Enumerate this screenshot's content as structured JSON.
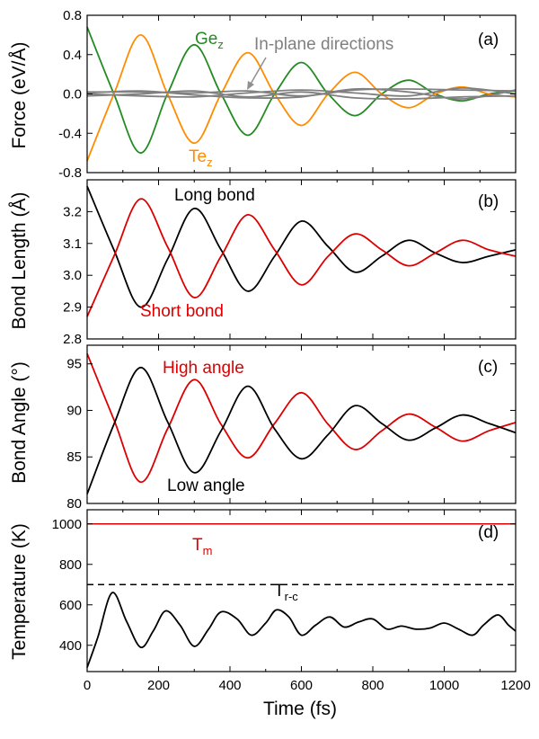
{
  "chart_data": [
    {
      "type": "line",
      "panel_label": "(a)",
      "ylabel": "Force (eV/Å)",
      "xlim": [
        0,
        1200
      ],
      "ylim": [
        -0.8,
        0.8
      ],
      "yticks": [
        "-0.8",
        "-0.4",
        "0.0",
        "0.4",
        "0.8"
      ],
      "annotations": {
        "in_plane": "In-plane directions",
        "ge": {
          "main": "Ge",
          "sub": "z"
        },
        "te": {
          "main": "Te",
          "sub": "z"
        }
      },
      "series": [
        {
          "name": "Gez",
          "color": "#228B22",
          "x": [
            0,
            75,
            150,
            225,
            300,
            375,
            450,
            525,
            600,
            675,
            750,
            825,
            900,
            975,
            1050,
            1125,
            1200
          ],
          "y": [
            0.68,
            0.0,
            -0.6,
            0.0,
            0.5,
            0.0,
            -0.42,
            0.0,
            0.32,
            0.0,
            -0.22,
            0.0,
            0.14,
            0.0,
            -0.07,
            0.0,
            0.03
          ]
        },
        {
          "name": "Tez",
          "color": "#FF8C00",
          "x": [
            0,
            75,
            150,
            225,
            300,
            375,
            450,
            525,
            600,
            675,
            750,
            825,
            900,
            975,
            1050,
            1125,
            1200
          ],
          "y": [
            -0.68,
            0.0,
            0.6,
            0.0,
            -0.5,
            0.0,
            0.42,
            0.0,
            -0.32,
            0.0,
            0.22,
            0.0,
            -0.14,
            0.0,
            0.07,
            0.0,
            -0.03
          ]
        },
        {
          "name": "In-plane directions",
          "color": "#808080",
          "x": [
            0,
            150,
            300,
            450,
            600,
            750,
            900,
            1050,
            1200
          ],
          "y": [
            0.02,
            0.02,
            0.01,
            0.03,
            -0.02,
            0.04,
            0.05,
            0.04,
            0.03
          ]
        },
        {
          "name": "In-plane directions",
          "color": "#808080",
          "x": [
            0,
            150,
            300,
            450,
            600,
            750,
            900,
            1050,
            1200
          ],
          "y": [
            -0.02,
            0.0,
            0.03,
            -0.03,
            0.02,
            -0.04,
            -0.05,
            -0.03,
            -0.02
          ]
        },
        {
          "name": "In-plane directions",
          "color": "#808080",
          "x": [
            0,
            150,
            300,
            450,
            600,
            750,
            900,
            1050,
            1200
          ],
          "y": [
            0.0,
            -0.02,
            -0.03,
            0.01,
            0.04,
            0.01,
            -0.02,
            0.06,
            0.0
          ]
        },
        {
          "name": "In-plane directions",
          "color": "#808080",
          "x": [
            0,
            150,
            300,
            450,
            600,
            750,
            900,
            1050,
            1200
          ],
          "y": [
            0.01,
            0.03,
            -0.01,
            -0.04,
            -0.03,
            0.05,
            0.02,
            -0.05,
            0.04
          ]
        }
      ]
    },
    {
      "type": "line",
      "panel_label": "(b)",
      "ylabel": "Bond Length (Å)",
      "xlim": [
        0,
        1200
      ],
      "ylim": [
        2.8,
        3.3
      ],
      "yticks": [
        "2.8",
        "2.9",
        "3.0",
        "3.1",
        "3.2"
      ],
      "annotations": {
        "long": "Long bond",
        "short": "Short bond"
      },
      "series": [
        {
          "name": "Long bond",
          "color": "#000000",
          "x": [
            0,
            75,
            150,
            225,
            300,
            375,
            450,
            525,
            600,
            675,
            750,
            825,
            900,
            975,
            1050,
            1125,
            1200
          ],
          "y": [
            3.28,
            3.08,
            2.9,
            3.05,
            3.21,
            3.08,
            2.95,
            3.06,
            3.17,
            3.09,
            3.01,
            3.06,
            3.11,
            3.07,
            3.04,
            3.06,
            3.08
          ]
        },
        {
          "name": "Short bond",
          "color": "#DD0000",
          "x": [
            0,
            75,
            150,
            225,
            300,
            375,
            450,
            525,
            600,
            675,
            750,
            825,
            900,
            975,
            1050,
            1125,
            1200
          ],
          "y": [
            2.87,
            3.06,
            3.24,
            3.09,
            2.93,
            3.06,
            3.19,
            3.08,
            2.97,
            3.06,
            3.13,
            3.08,
            3.03,
            3.07,
            3.11,
            3.08,
            3.06
          ]
        }
      ]
    },
    {
      "type": "line",
      "panel_label": "(c)",
      "ylabel": "Bond Angle (°)",
      "xlim": [
        0,
        1200
      ],
      "ylim": [
        80,
        97
      ],
      "yticks": [
        "80",
        "85",
        "90",
        "95"
      ],
      "annotations": {
        "high": "High angle",
        "low": "Low angle"
      },
      "series": [
        {
          "name": "High angle",
          "color": "#DD0000",
          "x": [
            0,
            75,
            150,
            225,
            300,
            375,
            450,
            525,
            600,
            675,
            750,
            825,
            900,
            975,
            1050,
            1125,
            1200
          ],
          "y": [
            96.1,
            89.0,
            82.3,
            88.0,
            93.3,
            88.5,
            84.9,
            88.6,
            91.9,
            88.5,
            85.8,
            87.8,
            89.6,
            88.2,
            86.7,
            87.8,
            88.7
          ]
        },
        {
          "name": "Low angle",
          "color": "#000000",
          "x": [
            0,
            75,
            150,
            225,
            300,
            375,
            450,
            525,
            600,
            675,
            750,
            825,
            900,
            975,
            1050,
            1125,
            1200
          ],
          "y": [
            81.0,
            88.5,
            94.6,
            88.8,
            83.3,
            87.8,
            92.6,
            88.0,
            84.8,
            87.4,
            90.5,
            88.6,
            86.8,
            88.1,
            89.5,
            88.6,
            87.6
          ]
        }
      ]
    },
    {
      "type": "line",
      "panel_label": "(d)",
      "ylabel": "Temperature (K)",
      "xlabel": "Time (fs)",
      "xlim": [
        0,
        1200
      ],
      "ylim": [
        270,
        1070
      ],
      "yticks": [
        "400",
        "600",
        "800",
        "1000"
      ],
      "xticks": [
        "0",
        "200",
        "400",
        "600",
        "800",
        "1000",
        "1200"
      ],
      "annotations": {
        "tm": {
          "main": "T",
          "sub": "m"
        },
        "trc": {
          "main": "T",
          "sub": "r-c"
        }
      },
      "reference_lines": [
        {
          "name": "Tm",
          "value": 1000,
          "color": "#DD0000",
          "style": "solid"
        },
        {
          "name": "Tr-c",
          "value": 700,
          "color": "#000000",
          "style": "dashed"
        }
      ],
      "series": [
        {
          "name": "Temperature",
          "color": "#000000",
          "x": [
            0,
            30,
            70,
            110,
            150,
            185,
            220,
            260,
            300,
            340,
            375,
            420,
            460,
            500,
            530,
            565,
            600,
            640,
            680,
            720,
            760,
            800,
            840,
            880,
            920,
            960,
            1000,
            1040,
            1080,
            1110,
            1150,
            1180,
            1200
          ],
          "y": [
            290,
            440,
            660,
            520,
            390,
            470,
            570,
            500,
            395,
            480,
            565,
            530,
            450,
            510,
            575,
            540,
            450,
            500,
            540,
            490,
            515,
            530,
            480,
            495,
            480,
            485,
            510,
            480,
            450,
            500,
            550,
            500,
            470
          ]
        }
      ]
    }
  ]
}
